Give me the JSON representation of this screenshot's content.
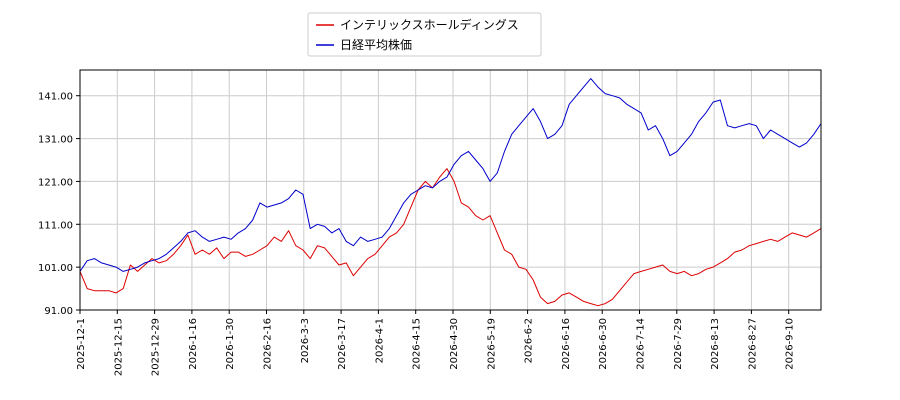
{
  "chart_data": {
    "type": "line",
    "title": "",
    "xlabel": "",
    "ylabel": "",
    "ylim": [
      91,
      147
    ],
    "yticks": [
      "91.00",
      "101.00",
      "111.00",
      "121.00",
      "131.00",
      "141.00"
    ],
    "grid": true,
    "legend_position": "top-center",
    "xticks": [
      "2025-12-1",
      "2025-12-15",
      "2025-12-29",
      "2026-1-16",
      "2026-1-30",
      "2026-2-16",
      "2026-3-3",
      "2026-3-17",
      "2026-4-1",
      "2026-4-15",
      "2026-4-30",
      "2026-5-19",
      "2026-6-2",
      "2026-6-16",
      "2026-6-30",
      "2026-7-14",
      "2026-7-29",
      "2026-8-13",
      "2026-8-27",
      "2026-9-10"
    ],
    "series": [
      {
        "name": "インテリックスホールディングス",
        "color": "#dd0000",
        "values": [
          100.0,
          96.0,
          95.5,
          95.5,
          95.5,
          95.0,
          96.0,
          101.5,
          100.0,
          101.5,
          103.0,
          102.0,
          102.5,
          104.0,
          106.0,
          108.5,
          104.0,
          105.0,
          104.0,
          105.5,
          103.0,
          104.5,
          104.5,
          103.5,
          104.0,
          105.0,
          106.0,
          108.0,
          107.0,
          109.5,
          106.0,
          105.0,
          103.0,
          106.0,
          105.5,
          103.5,
          101.5,
          102.0,
          99.0,
          101.0,
          103.0,
          104.0,
          106.0,
          108.0,
          109.0,
          111.0,
          115.0,
          119.0,
          121.0,
          119.5,
          122.0,
          124.0,
          121.0,
          116.0,
          115.0,
          113.0,
          112.0,
          113.0,
          109.0,
          105.0,
          104.0,
          101.0,
          100.5,
          98.0,
          94.0,
          92.5,
          93.0,
          94.5,
          95.0,
          94.0,
          93.0,
          92.5,
          92.0,
          92.5,
          93.5,
          95.5,
          97.5,
          99.5,
          100.0,
          100.5,
          101.0,
          101.5,
          100.0,
          99.5,
          100.0,
          99.0,
          99.5,
          100.5,
          101.0,
          102.0,
          103.0,
          104.5,
          105.0,
          106.0,
          106.5,
          107.0,
          107.5,
          107.0,
          108.0,
          109.0,
          108.5,
          108.0,
          109.0,
          110.0
        ]
      },
      {
        "name": "日経平均株価",
        "color": "#0000cc",
        "values": [
          100.0,
          102.5,
          103.0,
          102.0,
          101.5,
          101.0,
          100.0,
          100.5,
          101.0,
          102.0,
          102.5,
          103.0,
          104.0,
          105.5,
          107.0,
          109.0,
          109.5,
          108.0,
          107.0,
          107.5,
          108.0,
          107.5,
          109.0,
          110.0,
          112.0,
          116.0,
          115.0,
          115.5,
          116.0,
          117.0,
          119.0,
          118.0,
          110.0,
          111.0,
          110.5,
          109.0,
          110.0,
          107.0,
          106.0,
          108.0,
          107.0,
          107.5,
          108.0,
          110.0,
          113.0,
          116.0,
          118.0,
          119.0,
          120.0,
          119.5,
          121.0,
          122.0,
          125.0,
          127.0,
          128.0,
          126.0,
          124.0,
          121.0,
          123.0,
          128.0,
          132.0,
          134.0,
          136.0,
          138.0,
          135.0,
          131.0,
          132.0,
          134.0,
          139.0,
          141.0,
          143.0,
          145.0,
          143.0,
          141.5,
          141.0,
          140.5,
          139.0,
          138.0,
          137.0,
          133.0,
          134.0,
          131.0,
          127.0,
          128.0,
          130.0,
          132.0,
          135.0,
          137.0,
          139.5,
          140.0,
          134.0,
          133.5,
          134.0,
          134.5,
          134.0,
          131.0,
          133.0,
          132.0,
          131.0,
          130.0,
          129.0,
          130.0,
          132.0,
          134.5
        ]
      }
    ]
  }
}
